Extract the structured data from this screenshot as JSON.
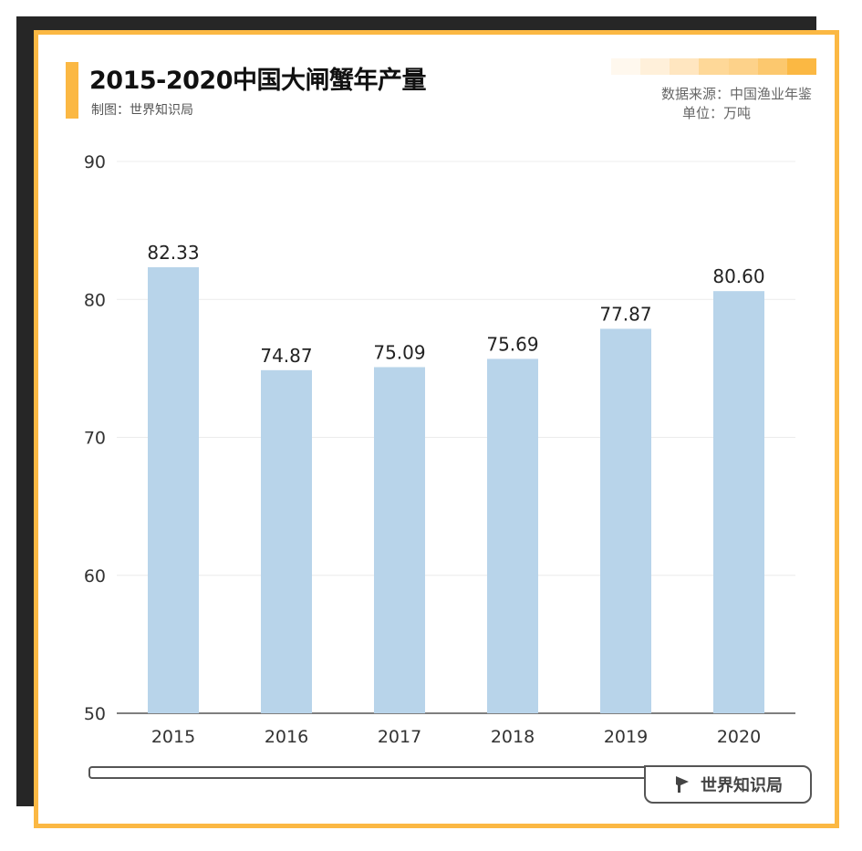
{
  "header": {
    "title": "2015-2020中国大闸蟹年产量",
    "maker": "制图：世界知识局",
    "source": "数据来源：中国渔业年鉴",
    "unit": "单位：万吨"
  },
  "colors": {
    "accent": "#fbb843",
    "bar": "#b8d4ea",
    "frame": "#262626"
  },
  "brand": {
    "label": "世界知识局",
    "icon": "flag-icon"
  },
  "chart_data": {
    "type": "bar",
    "title": "2015-2020中国大闸蟹年产量",
    "xlabel": "",
    "ylabel": "",
    "categories": [
      "2015",
      "2016",
      "2017",
      "2018",
      "2019",
      "2020"
    ],
    "values": [
      82.33,
      74.87,
      75.09,
      75.69,
      77.87,
      80.6
    ],
    "value_labels": [
      "82.33",
      "74.87",
      "75.09",
      "75.69",
      "77.87",
      "80.60"
    ],
    "ylim": [
      50,
      90
    ],
    "yticks": [
      50,
      60,
      70,
      80,
      90
    ],
    "grid": true
  }
}
